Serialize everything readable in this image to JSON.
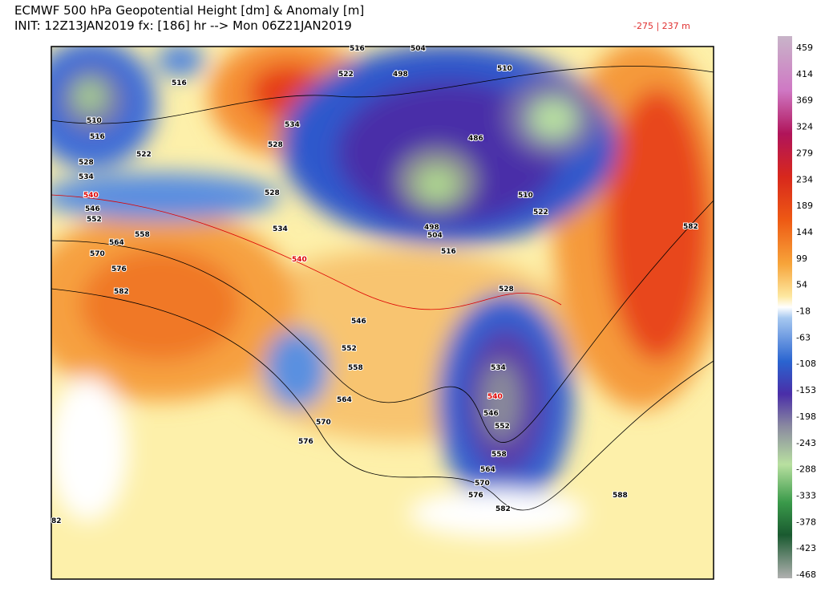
{
  "header": {
    "title": "ECMWF 500 hPa Geopotential Height [dm] & Anomaly [m]",
    "subtitle": "INIT: 12Z13JAN2019 fx: [186] hr --> Mon 06Z21JAN2019",
    "range_note": "-275 | 237 m"
  },
  "colorbar": {
    "labels": [
      "459",
      "414",
      "369",
      "324",
      "279",
      "234",
      "189",
      "144",
      "99",
      "54",
      "-18",
      "-63",
      "-108",
      "-153",
      "-198",
      "-243",
      "-288",
      "-333",
      "-378",
      "-423",
      "-468"
    ]
  },
  "contour_labels": [
    "510",
    "516",
    "522",
    "528",
    "534",
    "540",
    "546",
    "552",
    "558",
    "564",
    "570",
    "576",
    "582",
    "516",
    "534",
    "528",
    "528",
    "534",
    "540",
    "522",
    "516",
    "504",
    "498",
    "510",
    "486",
    "498",
    "504",
    "516",
    "510",
    "522",
    "582",
    "528",
    "546",
    "552",
    "558",
    "564",
    "570",
    "576",
    "534",
    "540",
    "546",
    "552",
    "558",
    "564",
    "570",
    "576",
    "582",
    "588",
    "82"
  ]
}
